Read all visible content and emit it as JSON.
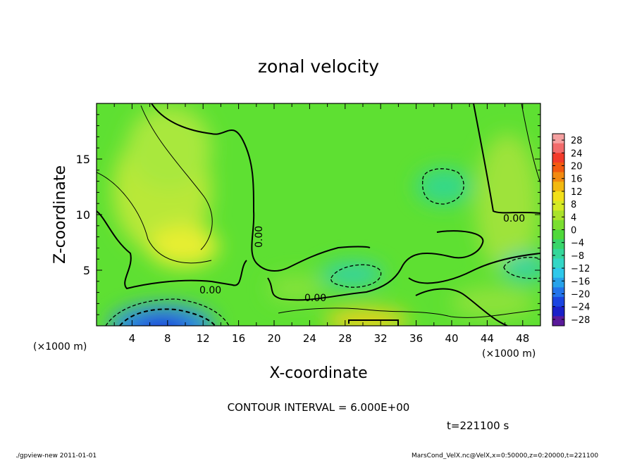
{
  "chart_data": {
    "type": "heatmap",
    "title": "zonal velocity",
    "xlabel": "X-coordinate",
    "ylabel": "Z-coordinate",
    "x_unit": "(×1000 m)",
    "y_unit": "(×1000 m)",
    "xlim": [
      0,
      50
    ],
    "ylim": [
      0,
      20
    ],
    "x_ticks": [
      4,
      8,
      12,
      16,
      20,
      24,
      28,
      32,
      36,
      40,
      44,
      48
    ],
    "y_ticks": [
      5,
      10,
      15
    ],
    "colorbar": {
      "min": -30,
      "max": 30,
      "labels": [
        28,
        24,
        20,
        16,
        12,
        8,
        4,
        0,
        -4,
        -8,
        -12,
        -16,
        -20,
        -24,
        -28
      ]
    },
    "contour_labels": [
      {
        "text": "0.00",
        "x": 18.3,
        "z": 8.0
      },
      {
        "text": "0.00",
        "x": 13,
        "z": 3.3
      },
      {
        "text": "0.00",
        "x": 24.5,
        "z": 2.5
      },
      {
        "text": "0.00",
        "x": 47,
        "z": 9.5
      }
    ],
    "contour_interval": "CONTOUR INTERVAL = 6.000E+00",
    "time": "t=221100 s"
  },
  "footer": {
    "left": "./gpview-new  2011-01-01",
    "right": "MarsCond_VelX.nc@VelX,x=0:50000,z=0:20000,t=221100"
  }
}
